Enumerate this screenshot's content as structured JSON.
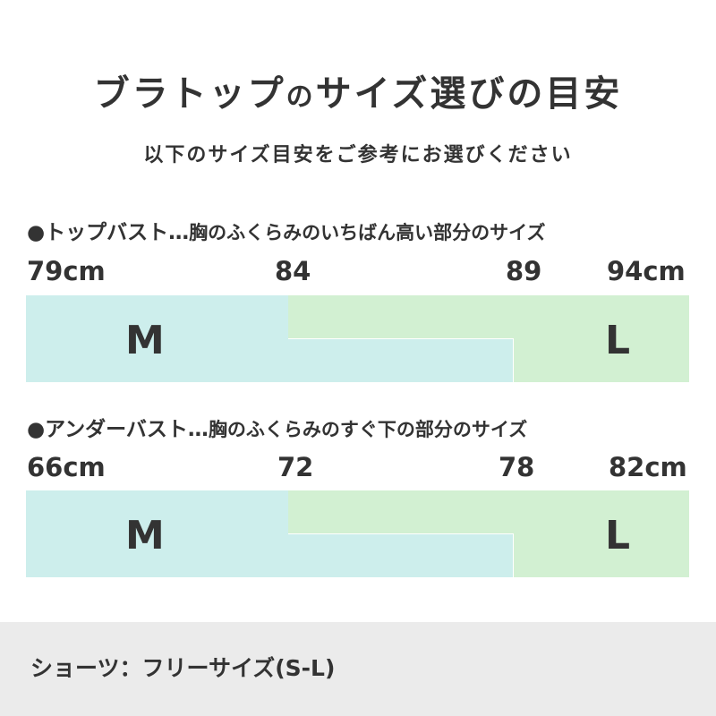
{
  "title": {
    "part1": "ブラトップ",
    "part2": "の",
    "part3": "サイズ選びの目安"
  },
  "subtitle": "以下のサイズ目安をご参考にお選びください",
  "sections": [
    {
      "bullet": "●",
      "label": "トップバスト…",
      "description": "胸のふくらみのいちばん高い部分のサイズ",
      "ticks": [
        "79cm",
        "84",
        "89",
        "94cm"
      ],
      "sizes": {
        "m": "M",
        "l": "L"
      }
    },
    {
      "bullet": "●",
      "label": "アンダーバスト…",
      "description": "胸のふくらみのすぐ下の部分のサイズ",
      "ticks": [
        "66cm",
        "72",
        "78",
        "82cm"
      ],
      "sizes": {
        "m": "M",
        "l": "L"
      }
    }
  ],
  "footer": "ショーツ：フリーサイズ(S-L)",
  "colors": {
    "m": "#cdeeec",
    "l": "#d2f0d2",
    "text": "#333333",
    "footer_bg": "#ebebeb"
  }
}
